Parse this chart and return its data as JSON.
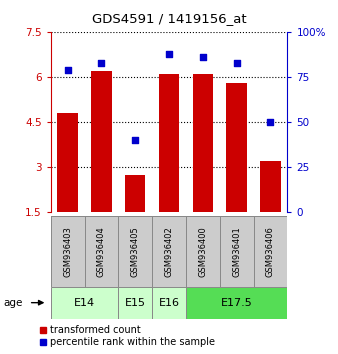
{
  "title": "GDS4591 / 1419156_at",
  "samples": [
    "GSM936403",
    "GSM936404",
    "GSM936405",
    "GSM936402",
    "GSM936400",
    "GSM936401",
    "GSM936406"
  ],
  "red_values": [
    4.8,
    6.2,
    2.75,
    6.1,
    6.1,
    5.8,
    3.2
  ],
  "blue_values_pct": [
    79,
    83,
    40,
    88,
    86,
    83,
    50
  ],
  "ylim_left": [
    1.5,
    7.5
  ],
  "ylim_right": [
    0,
    100
  ],
  "yticks_left": [
    1.5,
    3.0,
    4.5,
    6.0,
    7.5
  ],
  "yticks_right": [
    0,
    25,
    50,
    75,
    100
  ],
  "ytick_labels_left": [
    "1.5",
    "3",
    "4.5",
    "6",
    "7.5"
  ],
  "ytick_labels_right": [
    "0",
    "25",
    "50",
    "75",
    "100%"
  ],
  "left_tick_color": "#cc0000",
  "right_tick_color": "#0000cc",
  "bar_color": "#cc0000",
  "dot_color": "#0000cc",
  "bar_width": 0.6,
  "legend_red_label": "transformed count",
  "legend_blue_label": "percentile rank within the sample",
  "age_groups": [
    {
      "label": "E14",
      "start": 0,
      "end": 1,
      "color": "#ccffcc"
    },
    {
      "label": "E15",
      "start": 2,
      "end": 2,
      "color": "#ccffcc"
    },
    {
      "label": "E16",
      "start": 3,
      "end": 3,
      "color": "#ccffcc"
    },
    {
      "label": "E17.5",
      "start": 4,
      "end": 6,
      "color": "#55dd55"
    }
  ]
}
